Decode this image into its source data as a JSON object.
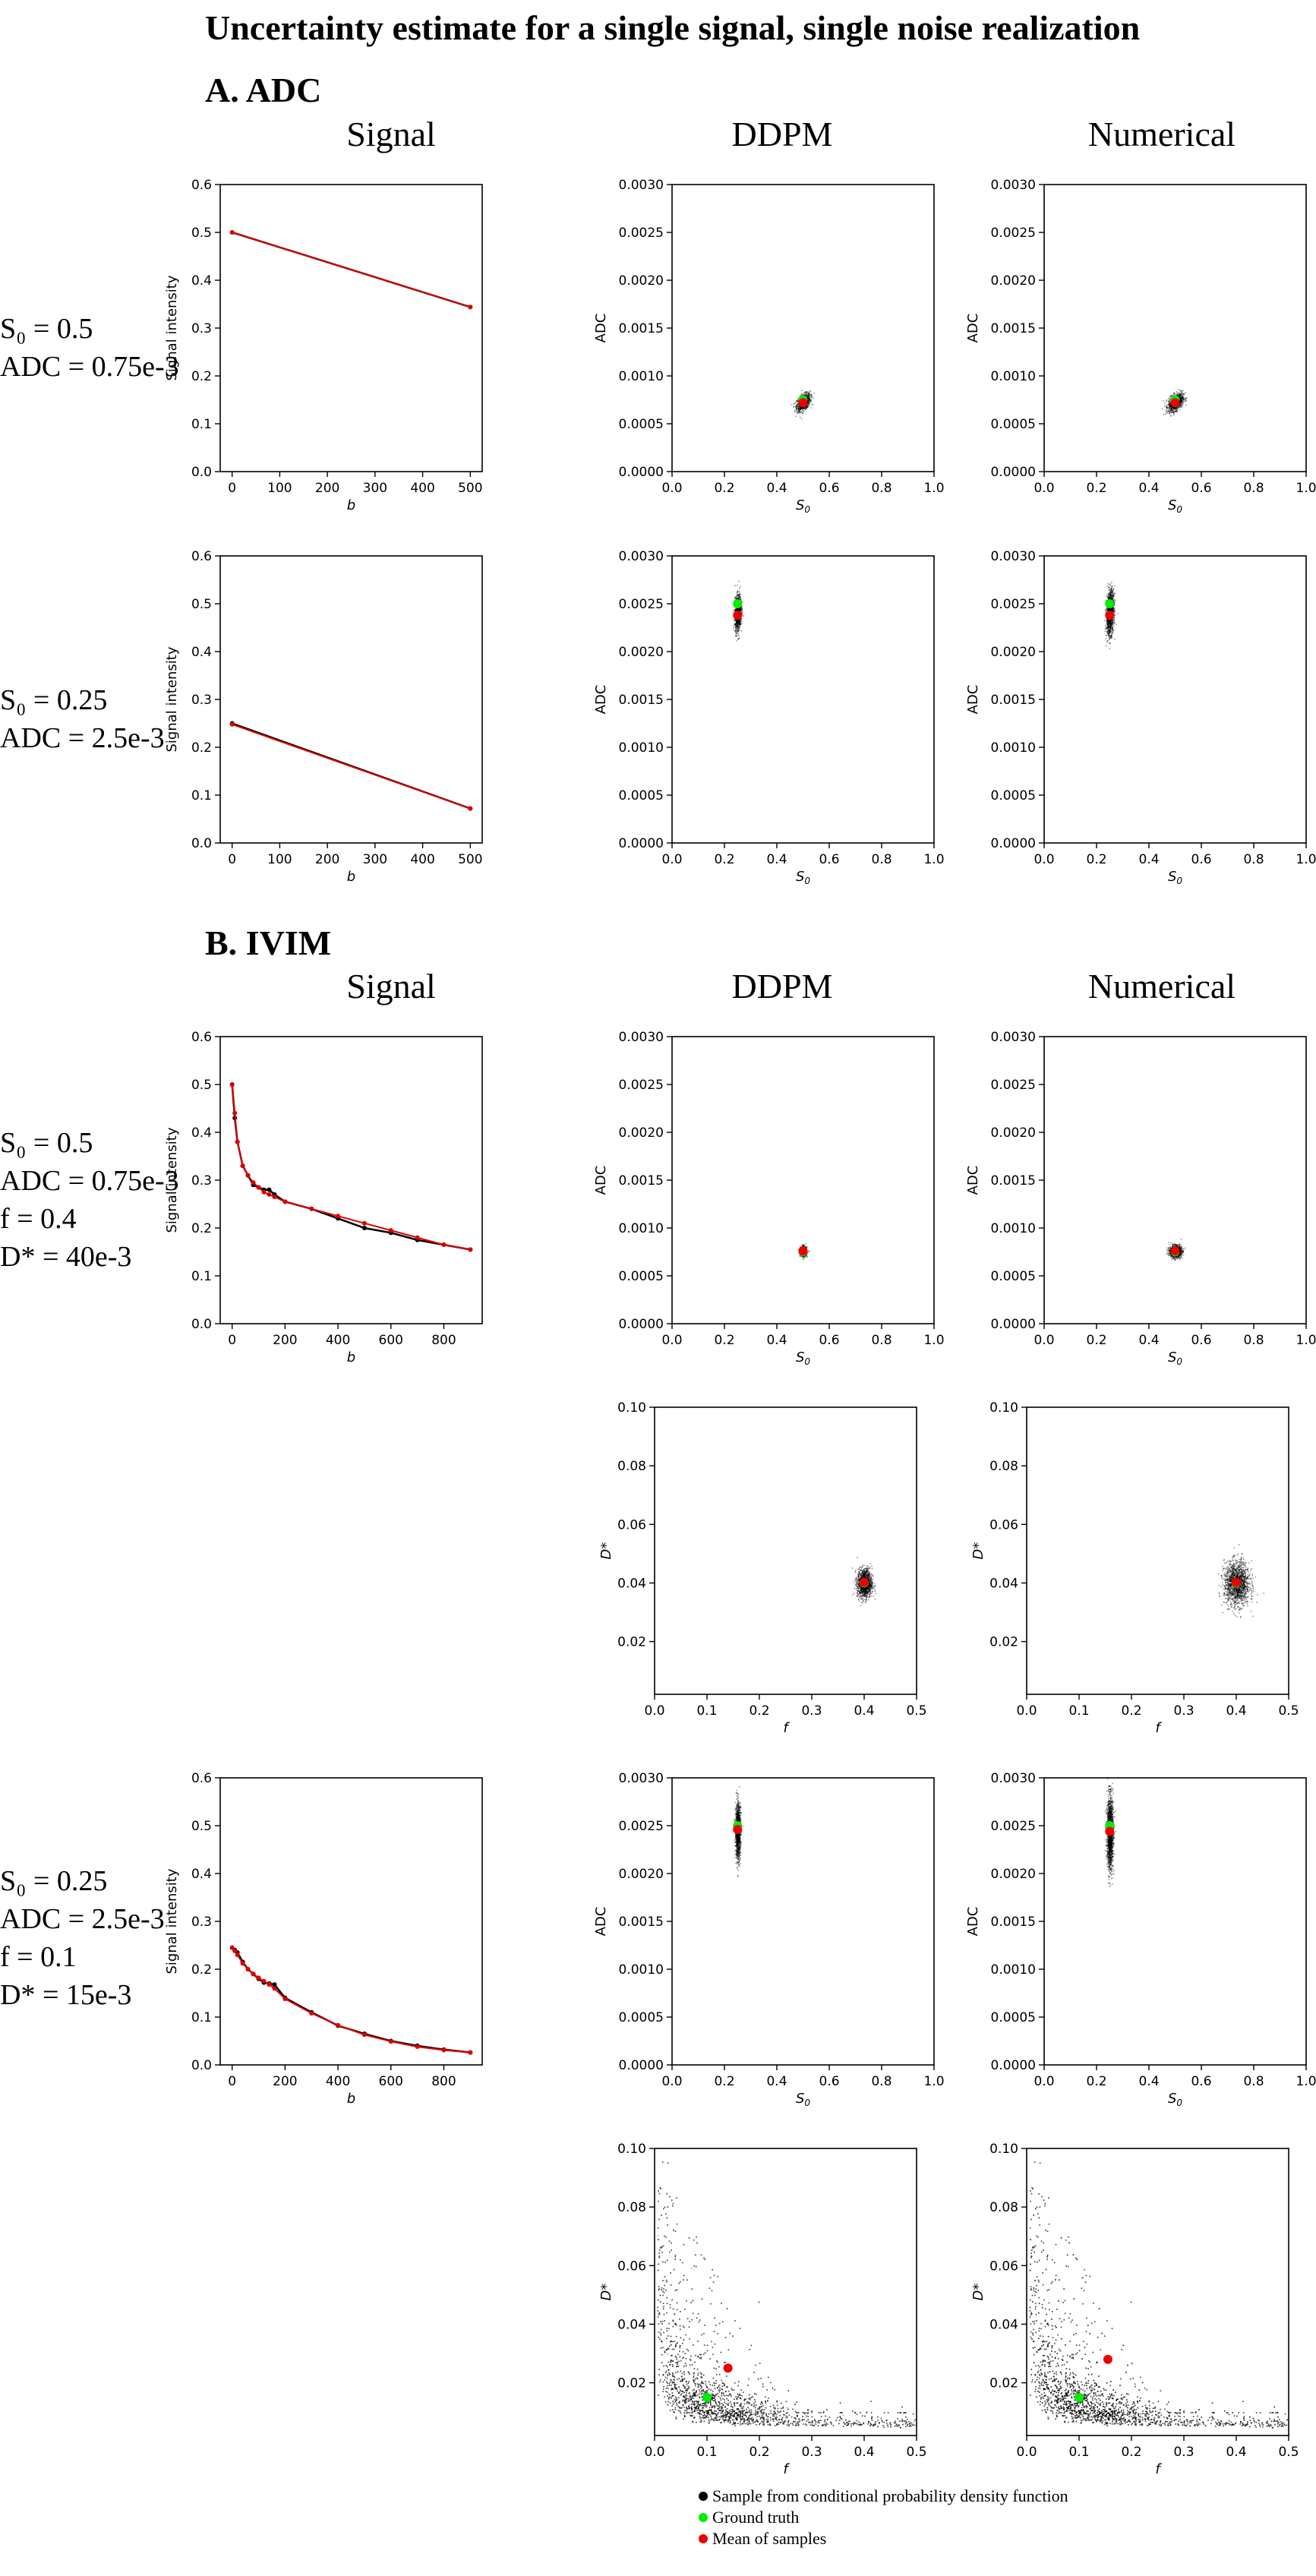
{
  "title": "Uncertainty estimate for a single signal, single noise realization",
  "colors": {
    "sample": "#000000",
    "truth": "#00ee00",
    "mean": "#ee0000",
    "signal_truth": "#000000",
    "signal_fit": "#dd0000"
  },
  "sections": {
    "adc": {
      "label": "A. ADC",
      "col_signal": "Signal",
      "col_ddpm": "DDPM",
      "col_numerical": "Numerical",
      "row1_params": [
        "S₀ = 0.5",
        "ADC = 0.75e-3"
      ],
      "row2_params": [
        "S₀ = 0.25",
        "ADC = 2.5e-3"
      ]
    },
    "ivim": {
      "label": "B. IVIM",
      "col_signal": "Signal",
      "col_ddpm": "DDPM",
      "col_numerical": "Numerical",
      "row1_params": [
        "S₀ = 0.5",
        "ADC = 0.75e-3",
        "f = 0.4",
        "D* = 40e-3"
      ],
      "row2_params": [
        "S₀ = 0.25",
        "ADC = 2.5e-3",
        "f = 0.1",
        "D* = 15e-3"
      ]
    }
  },
  "legend": {
    "sample": "Sample from conditional probability density function",
    "truth": "Ground truth",
    "mean": "Mean of samples"
  },
  "chart_data": [
    {
      "id": "adc1_signal",
      "type": "line",
      "xlabel": "b",
      "ylabel": "Signal intensity",
      "xlim": [
        -25,
        525
      ],
      "ylim": [
        0,
        0.6
      ],
      "xticks": [
        0,
        100,
        200,
        300,
        400,
        500
      ],
      "xticklabels": [
        "0",
        "100",
        "200",
        "300",
        "400",
        "500"
      ],
      "yticks": [
        0,
        0.1,
        0.2,
        0.3,
        0.4,
        0.5,
        0.6
      ],
      "yticklabels": [
        "0.0",
        "0.1",
        "0.2",
        "0.3",
        "0.4",
        "0.5",
        "0.6"
      ],
      "series": [
        {
          "name": "truth",
          "x": [
            0,
            500
          ],
          "y": [
            0.5,
            0.344
          ]
        },
        {
          "name": "fit",
          "x": [
            0,
            500
          ],
          "y": [
            0.5,
            0.344
          ]
        }
      ]
    },
    {
      "id": "adc1_ddpm",
      "type": "scatter",
      "xlabel": "S0",
      "ylabel": "ADC",
      "xlim": [
        0,
        1
      ],
      "ylim": [
        0,
        0.003
      ],
      "xticks": [
        0,
        0.2,
        0.4,
        0.6,
        0.8,
        1.0
      ],
      "xticklabels": [
        "0.0",
        "0.2",
        "0.4",
        "0.6",
        "0.8",
        "1.0"
      ],
      "yticks": [
        0,
        0.0005,
        0.001,
        0.0015,
        0.002,
        0.0025,
        0.003
      ],
      "yticklabels": [
        "0.0000",
        "0.0005",
        "0.0010",
        "0.0015",
        "0.0020",
        "0.0025",
        "0.0030"
      ],
      "cloud": {
        "center": [
          0.5,
          0.00073
        ],
        "spread": [
          0.013,
          4e-05
        ],
        "tilt": 0.5,
        "count": 900
      },
      "truth": [
        0.5,
        0.00075
      ],
      "mean": [
        0.5,
        0.00072
      ]
    },
    {
      "id": "adc1_num",
      "type": "scatter",
      "xlabel": "S0",
      "ylabel": "ADC",
      "xlim": [
        0,
        1
      ],
      "ylim": [
        0,
        0.003
      ],
      "xticks": [
        0,
        0.2,
        0.4,
        0.6,
        0.8,
        1.0
      ],
      "xticklabels": [
        "0.0",
        "0.2",
        "0.4",
        "0.6",
        "0.8",
        "1.0"
      ],
      "yticks": [
        0,
        0.0005,
        0.001,
        0.0015,
        0.002,
        0.0025,
        0.003
      ],
      "yticklabels": [
        "0.0000",
        "0.0005",
        "0.0010",
        "0.0015",
        "0.0020",
        "0.0025",
        "0.0030"
      ],
      "cloud": {
        "center": [
          0.5,
          0.00073
        ],
        "spread": [
          0.014,
          4e-05
        ],
        "tilt": 0.5,
        "count": 1000
      },
      "truth": [
        0.5,
        0.00075
      ],
      "mean": [
        0.5,
        0.00072
      ]
    },
    {
      "id": "adc2_signal",
      "type": "line",
      "xlabel": "b",
      "ylabel": "Signal intensity",
      "xlim": [
        -25,
        525
      ],
      "ylim": [
        0,
        0.6
      ],
      "xticks": [
        0,
        100,
        200,
        300,
        400,
        500
      ],
      "xticklabels": [
        "0",
        "100",
        "200",
        "300",
        "400",
        "500"
      ],
      "yticks": [
        0,
        0.1,
        0.2,
        0.3,
        0.4,
        0.5,
        0.6
      ],
      "yticklabels": [
        "0.0",
        "0.1",
        "0.2",
        "0.3",
        "0.4",
        "0.5",
        "0.6"
      ],
      "series": [
        {
          "name": "truth",
          "x": [
            0,
            500
          ],
          "y": [
            0.25,
            0.072
          ]
        },
        {
          "name": "fit",
          "x": [
            0,
            500
          ],
          "y": [
            0.248,
            0.072
          ]
        }
      ]
    },
    {
      "id": "adc2_ddpm",
      "type": "scatter",
      "xlabel": "S0",
      "ylabel": "ADC",
      "xlim": [
        0,
        1
      ],
      "ylim": [
        0,
        0.003
      ],
      "xticks": [
        0,
        0.2,
        0.4,
        0.6,
        0.8,
        1.0
      ],
      "xticklabels": [
        "0.0",
        "0.2",
        "0.4",
        "0.6",
        "0.8",
        "1.0"
      ],
      "yticks": [
        0,
        0.0005,
        0.001,
        0.0015,
        0.002,
        0.0025,
        0.003
      ],
      "yticklabels": [
        "0.0000",
        "0.0005",
        "0.0010",
        "0.0015",
        "0.0020",
        "0.0025",
        "0.0030"
      ],
      "cloud": {
        "center": [
          0.25,
          0.00241
        ],
        "spread": [
          0.006,
          9e-05
        ],
        "tilt": 0.2,
        "count": 1100
      },
      "truth": [
        0.25,
        0.0025
      ],
      "mean": [
        0.25,
        0.00238
      ]
    },
    {
      "id": "adc2_num",
      "type": "scatter",
      "xlabel": "S0",
      "ylabel": "ADC",
      "xlim": [
        0,
        1
      ],
      "ylim": [
        0,
        0.003
      ],
      "xticks": [
        0,
        0.2,
        0.4,
        0.6,
        0.8,
        1.0
      ],
      "xticklabels": [
        "0.0",
        "0.2",
        "0.4",
        "0.6",
        "0.8",
        "1.0"
      ],
      "yticks": [
        0,
        0.0005,
        0.001,
        0.0015,
        0.002,
        0.0025,
        0.003
      ],
      "yticklabels": [
        "0.0000",
        "0.0005",
        "0.0010",
        "0.0015",
        "0.0020",
        "0.0025",
        "0.0030"
      ],
      "cloud": {
        "center": [
          0.25,
          0.00241
        ],
        "spread": [
          0.007,
          0.00011
        ],
        "tilt": 0.2,
        "count": 1300
      },
      "truth": [
        0.25,
        0.0025
      ],
      "mean": [
        0.25,
        0.00238
      ]
    },
    {
      "id": "ivim1_signal",
      "type": "line",
      "xlabel": "b",
      "ylabel": "Signal intensity",
      "xlim": [
        -45,
        945
      ],
      "ylim": [
        0,
        0.6
      ],
      "xticks": [
        0,
        200,
        400,
        600,
        800
      ],
      "xticklabels": [
        "0",
        "200",
        "400",
        "600",
        "800"
      ],
      "yticks": [
        0,
        0.1,
        0.2,
        0.3,
        0.4,
        0.5,
        0.6
      ],
      "yticklabels": [
        "0.0",
        "0.1",
        "0.2",
        "0.3",
        "0.4",
        "0.5",
        "0.6"
      ],
      "series": [
        {
          "name": "truth",
          "x": [
            0,
            10,
            20,
            40,
            60,
            80,
            100,
            120,
            140,
            160,
            200,
            300,
            400,
            500,
            600,
            700,
            800,
            900
          ],
          "y": [
            0.5,
            0.43,
            0.38,
            0.33,
            0.31,
            0.29,
            0.285,
            0.28,
            0.28,
            0.27,
            0.255,
            0.24,
            0.22,
            0.2,
            0.19,
            0.175,
            0.165,
            0.155
          ]
        },
        {
          "name": "fit",
          "x": [
            0,
            10,
            20,
            40,
            60,
            80,
            100,
            120,
            140,
            160,
            200,
            300,
            400,
            500,
            600,
            700,
            800,
            900
          ],
          "y": [
            0.5,
            0.44,
            0.38,
            0.33,
            0.31,
            0.295,
            0.285,
            0.275,
            0.27,
            0.265,
            0.255,
            0.24,
            0.225,
            0.21,
            0.195,
            0.18,
            0.165,
            0.155
          ]
        }
      ]
    },
    {
      "id": "ivim1_ddpm_adc",
      "type": "scatter",
      "xlabel": "S0",
      "ylabel": "ADC",
      "xlim": [
        0,
        1
      ],
      "ylim": [
        0,
        0.003
      ],
      "xticks": [
        0,
        0.2,
        0.4,
        0.6,
        0.8,
        1.0
      ],
      "xticklabels": [
        "0.0",
        "0.2",
        "0.4",
        "0.6",
        "0.8",
        "1.0"
      ],
      "yticks": [
        0,
        0.0005,
        0.001,
        0.0015,
        0.002,
        0.0025,
        0.003
      ],
      "yticklabels": [
        "0.0000",
        "0.0005",
        "0.0010",
        "0.0015",
        "0.0020",
        "0.0025",
        "0.0030"
      ],
      "cloud": {
        "center": [
          0.5,
          0.00076
        ],
        "spread": [
          0.006,
          2.5e-05
        ],
        "tilt": 0,
        "count": 800
      },
      "truth": [
        0.5,
        0.00075
      ],
      "mean": [
        0.5,
        0.00076
      ]
    },
    {
      "id": "ivim1_num_adc",
      "type": "scatter",
      "xlabel": "S0",
      "ylabel": "ADC",
      "xlim": [
        0,
        1
      ],
      "ylim": [
        0,
        0.003
      ],
      "xticks": [
        0,
        0.2,
        0.4,
        0.6,
        0.8,
        1.0
      ],
      "xticklabels": [
        "0.0",
        "0.2",
        "0.4",
        "0.6",
        "0.8",
        "1.0"
      ],
      "yticks": [
        0,
        0.0005,
        0.001,
        0.0015,
        0.002,
        0.0025,
        0.003
      ],
      "yticklabels": [
        "0.0000",
        "0.0005",
        "0.0010",
        "0.0015",
        "0.0020",
        "0.0025",
        "0.0030"
      ],
      "cloud": {
        "center": [
          0.5,
          0.00076
        ],
        "spread": [
          0.011,
          3e-05
        ],
        "tilt": 0,
        "count": 1100
      },
      "truth": [
        0.5,
        0.00075
      ],
      "mean": [
        0.5,
        0.00076
      ]
    },
    {
      "id": "ivim1_ddpm_f",
      "type": "scatter",
      "xlabel": "f",
      "ylabel": "D*",
      "xlim": [
        0,
        0.5
      ],
      "ylim": [
        0.002,
        0.1
      ],
      "xticks": [
        0,
        0.1,
        0.2,
        0.3,
        0.4,
        0.5
      ],
      "xticklabels": [
        "0.0",
        "0.1",
        "0.2",
        "0.3",
        "0.4",
        "0.5"
      ],
      "yticks": [
        0.02,
        0.04,
        0.06,
        0.08,
        0.1
      ],
      "yticklabels": [
        "0.02",
        "0.04",
        "0.06",
        "0.08",
        "0.10"
      ],
      "cloud": {
        "center": [
          0.4,
          0.04
        ],
        "spread": [
          0.007,
          0.0025
        ],
        "tilt": 0,
        "count": 1200
      },
      "truth": [
        0.4,
        0.04
      ],
      "mean": [
        0.4,
        0.0402
      ]
    },
    {
      "id": "ivim1_num_f",
      "type": "scatter",
      "xlabel": "f",
      "ylabel": "D*",
      "xlim": [
        0,
        0.5
      ],
      "ylim": [
        0.002,
        0.1
      ],
      "xticks": [
        0,
        0.1,
        0.2,
        0.3,
        0.4,
        0.5
      ],
      "xticklabels": [
        "0.0",
        "0.1",
        "0.2",
        "0.3",
        "0.4",
        "0.5"
      ],
      "yticks": [
        0.02,
        0.04,
        0.06,
        0.08,
        0.1
      ],
      "yticklabels": [
        "0.02",
        "0.04",
        "0.06",
        "0.08",
        "0.10"
      ],
      "cloud": {
        "center": [
          0.4,
          0.04
        ],
        "spread": [
          0.012,
          0.0037
        ],
        "tilt": 0,
        "count": 1500
      },
      "truth": [
        0.4,
        0.04
      ],
      "mean": [
        0.4,
        0.0402
      ]
    },
    {
      "id": "ivim2_signal",
      "type": "line",
      "xlabel": "b",
      "ylabel": "Signal intensity",
      "xlim": [
        -45,
        945
      ],
      "ylim": [
        0,
        0.6
      ],
      "xticks": [
        0,
        200,
        400,
        600,
        800
      ],
      "xticklabels": [
        "0",
        "200",
        "400",
        "600",
        "800"
      ],
      "yticks": [
        0,
        0.1,
        0.2,
        0.3,
        0.4,
        0.5,
        0.6
      ],
      "yticklabels": [
        "0.0",
        "0.1",
        "0.2",
        "0.3",
        "0.4",
        "0.5",
        "0.6"
      ],
      "series": [
        {
          "name": "truth",
          "x": [
            0,
            10,
            20,
            40,
            60,
            80,
            100,
            120,
            140,
            160,
            200,
            300,
            400,
            500,
            600,
            700,
            800,
            900
          ],
          "y": [
            0.245,
            0.24,
            0.235,
            0.215,
            0.2,
            0.19,
            0.18,
            0.172,
            0.17,
            0.168,
            0.14,
            0.11,
            0.082,
            0.065,
            0.05,
            0.04,
            0.032,
            0.026
          ]
        },
        {
          "name": "fit",
          "x": [
            0,
            10,
            20,
            40,
            60,
            80,
            100,
            120,
            140,
            160,
            200,
            300,
            400,
            500,
            600,
            700,
            800,
            900
          ],
          "y": [
            0.245,
            0.238,
            0.23,
            0.212,
            0.2,
            0.19,
            0.182,
            0.175,
            0.168,
            0.16,
            0.138,
            0.108,
            0.083,
            0.063,
            0.049,
            0.038,
            0.031,
            0.026
          ]
        }
      ]
    },
    {
      "id": "ivim2_ddpm_adc",
      "type": "scatter",
      "xlabel": "S0",
      "ylabel": "ADC",
      "xlim": [
        0,
        1
      ],
      "ylim": [
        0,
        0.003
      ],
      "xticks": [
        0,
        0.2,
        0.4,
        0.6,
        0.8,
        1.0
      ],
      "xticklabels": [
        "0.0",
        "0.2",
        "0.4",
        "0.6",
        "0.8",
        "1.0"
      ],
      "yticks": [
        0,
        0.0005,
        0.001,
        0.0015,
        0.002,
        0.0025,
        0.003
      ],
      "yticklabels": [
        "0.0000",
        "0.0005",
        "0.0010",
        "0.0015",
        "0.0020",
        "0.0025",
        "0.0030"
      ],
      "cloud": {
        "center": [
          0.25,
          0.00245
        ],
        "spread": [
          0.005,
          0.00014
        ],
        "tilt": 0,
        "count": 1200
      },
      "truth": [
        0.25,
        0.0025
      ],
      "mean": [
        0.25,
        0.00246
      ]
    },
    {
      "id": "ivim2_num_adc",
      "type": "scatter",
      "xlabel": "S0",
      "ylabel": "ADC",
      "xlim": [
        0,
        1
      ],
      "ylim": [
        0,
        0.003
      ],
      "xticks": [
        0,
        0.2,
        0.4,
        0.6,
        0.8,
        1.0
      ],
      "xticklabels": [
        "0.0",
        "0.2",
        "0.4",
        "0.6",
        "0.8",
        "1.0"
      ],
      "yticks": [
        0,
        0.0005,
        0.001,
        0.0015,
        0.002,
        0.0025,
        0.003
      ],
      "yticklabels": [
        "0.0000",
        "0.0005",
        "0.0010",
        "0.0015",
        "0.0020",
        "0.0025",
        "0.0030"
      ],
      "cloud": {
        "center": [
          0.25,
          0.00243
        ],
        "spread": [
          0.006,
          0.00019
        ],
        "tilt": 0,
        "count": 1500
      },
      "truth": [
        0.25,
        0.0025
      ],
      "mean": [
        0.25,
        0.00244
      ]
    },
    {
      "id": "ivim2_ddpm_f",
      "type": "scatter",
      "xlabel": "f",
      "ylabel": "D*",
      "xlim": [
        0,
        0.5
      ],
      "ylim": [
        0.002,
        0.1
      ],
      "xticks": [
        0,
        0.1,
        0.2,
        0.3,
        0.4,
        0.5
      ],
      "xticklabels": [
        "0.0",
        "0.1",
        "0.2",
        "0.3",
        "0.4",
        "0.5"
      ],
      "yticks": [
        0.02,
        0.04,
        0.06,
        0.08,
        0.1
      ],
      "yticklabels": [
        "0.02",
        "0.04",
        "0.06",
        "0.08",
        "0.10"
      ],
      "cloud": {
        "kind": "hyperbola",
        "count": 5000
      },
      "truth": [
        0.1,
        0.015
      ],
      "mean": [
        0.14,
        0.025
      ]
    },
    {
      "id": "ivim2_num_f",
      "type": "scatter",
      "xlabel": "f",
      "ylabel": "D*",
      "xlim": [
        0,
        0.5
      ],
      "ylim": [
        0.002,
        0.1
      ],
      "xticks": [
        0,
        0.1,
        0.2,
        0.3,
        0.4,
        0.5
      ],
      "xticklabels": [
        "0.0",
        "0.1",
        "0.2",
        "0.3",
        "0.4",
        "0.5"
      ],
      "yticks": [
        0.02,
        0.04,
        0.06,
        0.08,
        0.1
      ],
      "yticklabels": [
        "0.02",
        "0.04",
        "0.06",
        "0.08",
        "0.10"
      ],
      "cloud": {
        "kind": "hyperbola",
        "count": 5500
      },
      "truth": [
        0.1,
        0.015
      ],
      "mean": [
        0.155,
        0.028
      ]
    }
  ]
}
